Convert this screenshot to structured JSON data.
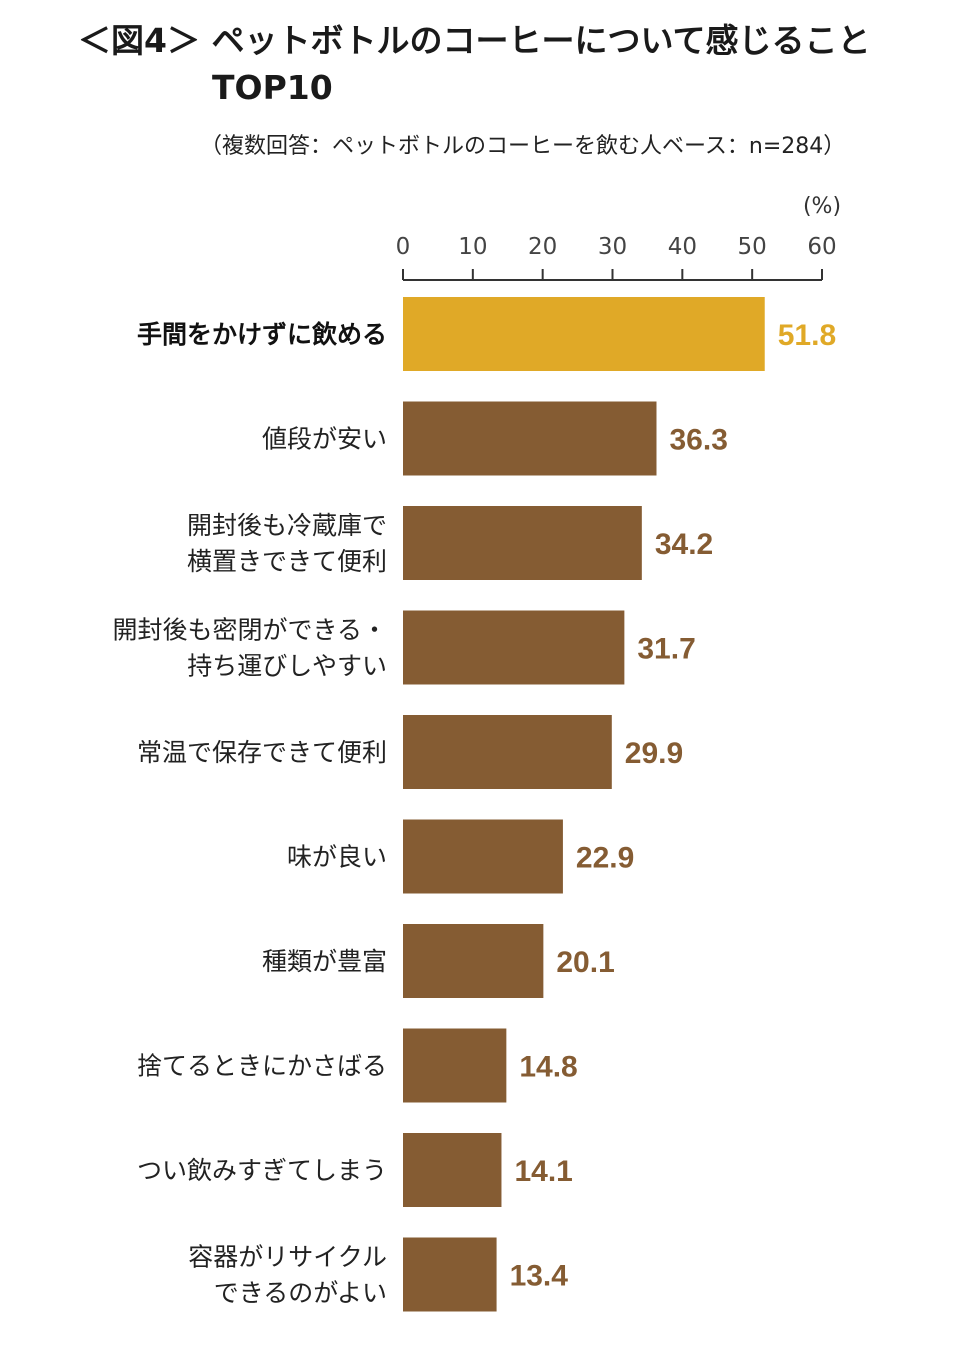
{
  "title": {
    "line1": "＜図4＞ ペットボトルのコーヒーについて感じること",
    "line2": "TOP10"
  },
  "subtitle": "（複数回答：ペットボトルのコーヒーを飲む人ベース：n=284）",
  "colors": {
    "highlight": "#E0A927",
    "bar": "#855C33",
    "highlight_label": "#E0A927",
    "bar_label": "#855C33",
    "axis": "#333333"
  },
  "chart_data": {
    "type": "bar",
    "orientation": "horizontal",
    "unit": "(%)",
    "xlim": [
      0,
      60
    ],
    "ticks": [
      "0",
      "10",
      "20",
      "30",
      "40",
      "50",
      "60"
    ],
    "grid": false,
    "highlight_index": 0,
    "categories": [
      [
        "手間をかけずに飲める"
      ],
      [
        "値段が安い"
      ],
      [
        "開封後も冷蔵庫で",
        "横置きできて便利"
      ],
      [
        "開封後も密閉ができる・",
        "持ち運びしやすい"
      ],
      [
        "常温で保存できて便利"
      ],
      [
        "味が良い"
      ],
      [
        "種類が豊富"
      ],
      [
        "捨てるときにかさばる"
      ],
      [
        "つい飲みすぎてしまう"
      ],
      [
        "容器がリサイクル",
        "できるのがよい"
      ]
    ],
    "values": [
      51.8,
      36.3,
      34.2,
      31.7,
      29.9,
      22.9,
      20.1,
      14.8,
      14.1,
      13.4
    ],
    "value_labels": [
      "51.8",
      "36.3",
      "34.2",
      "31.7",
      "29.9",
      "22.9",
      "20.1",
      "14.8",
      "14.1",
      "13.4"
    ]
  }
}
